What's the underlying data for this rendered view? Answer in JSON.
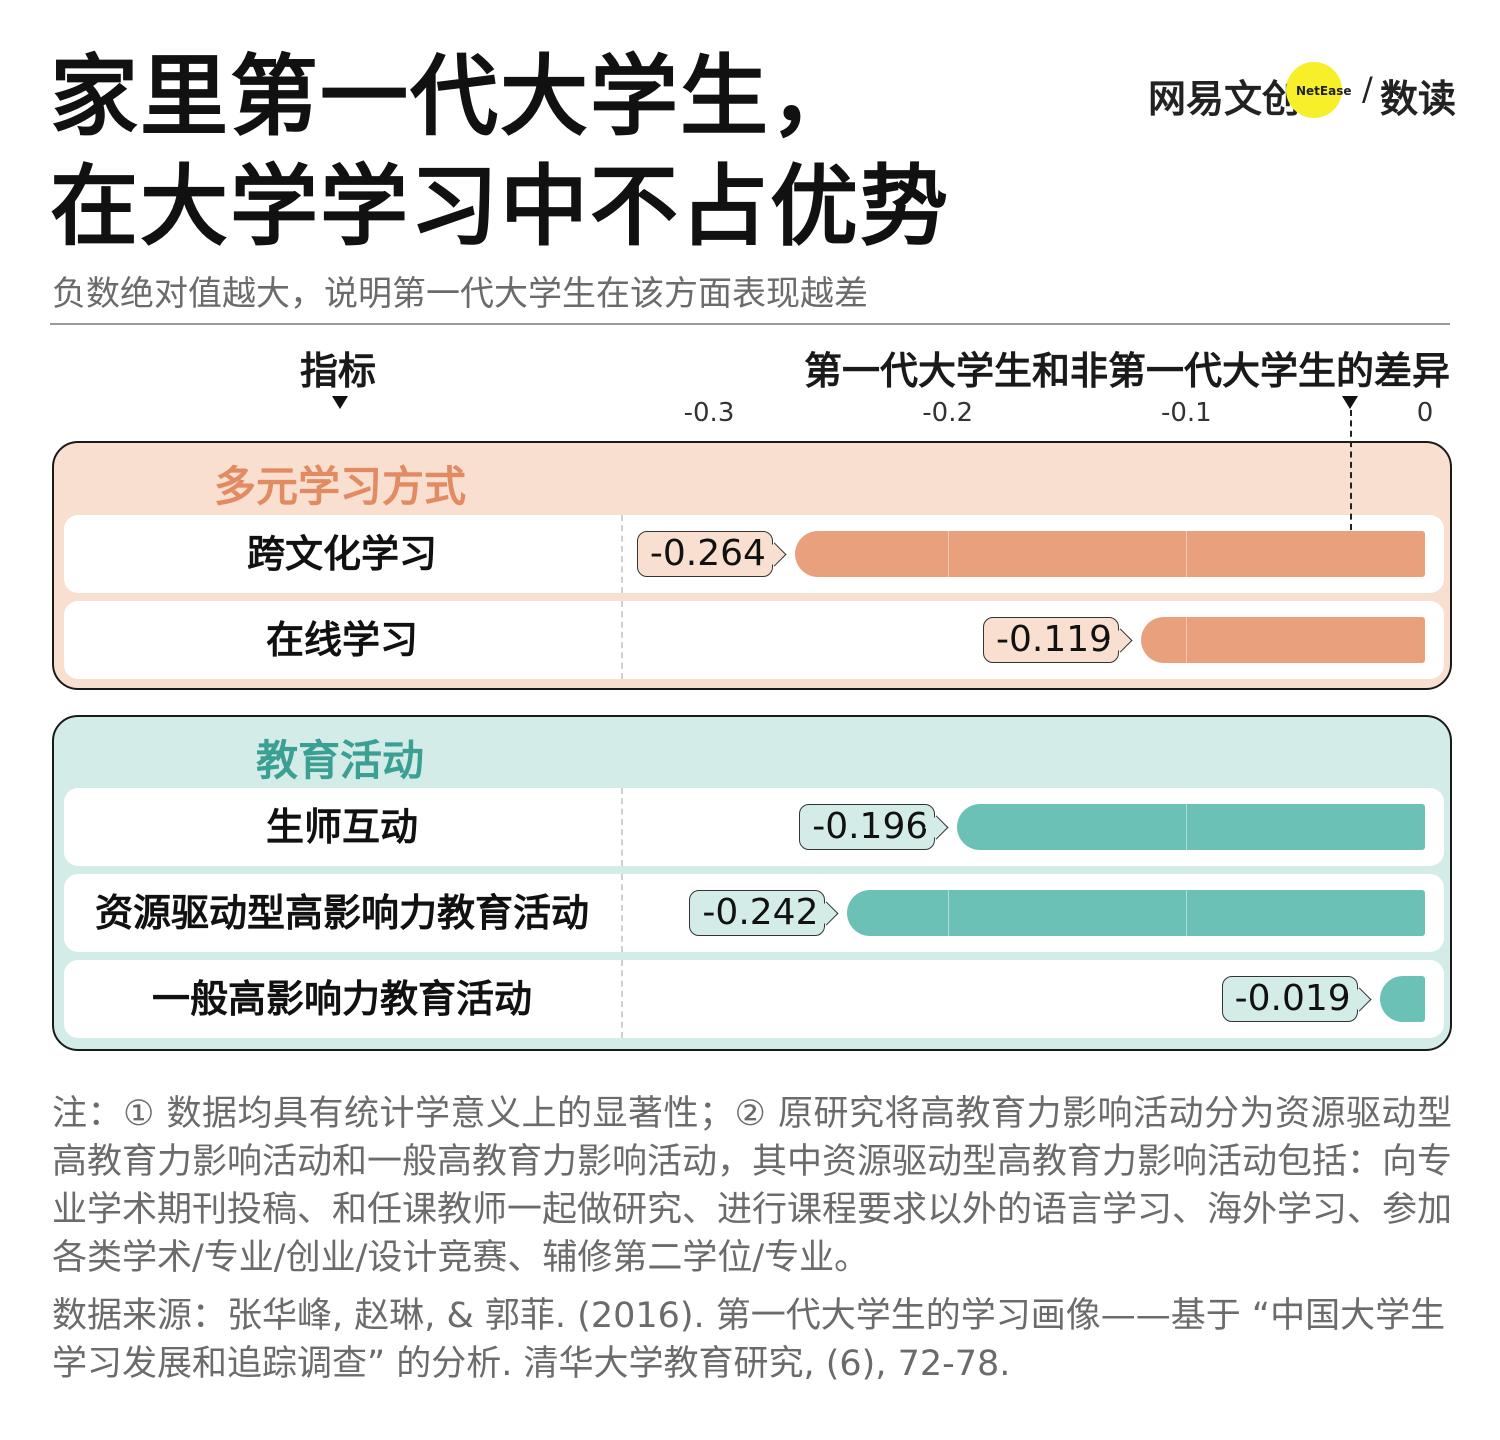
{
  "title_line1": "家里第一代大学生，",
  "title_line2": "在大学学习中不占优势",
  "subtitle": "负数绝对值越大，说明第一代大学生在该方面表现越差",
  "brand": {
    "name_cn": "网易文创",
    "name_en": "NetEase",
    "slash": "/",
    "column": "数读"
  },
  "header": {
    "indicator": "指标",
    "difference": "第一代大学生和非第一代大学生的差异"
  },
  "colors": {
    "orange_panel": "#f8dfcf",
    "orange_bar": "#e9a07c",
    "orange_label_bg": "#f8dfcf",
    "orange_title": "#e28a62",
    "teal_panel": "#d4ece8",
    "teal_bar": "#6cc1b6",
    "teal_label_bg": "#d4ece8",
    "teal_title": "#3c9f93"
  },
  "chart_data": {
    "type": "bar",
    "orientation": "horizontal",
    "xlim": [
      -0.3,
      0
    ],
    "xticks": [
      "-0.3",
      "-0.2",
      "-0.1",
      "0"
    ],
    "groups": [
      {
        "name": "多元学习方式",
        "categories": [
          "跨文化学习",
          "在线学习"
        ],
        "values": [
          -0.264,
          -0.119
        ],
        "labels": [
          "-0.264",
          "-0.119"
        ]
      },
      {
        "name": "教育活动",
        "categories": [
          "生师互动",
          "资源驱动型高影响力教育活动",
          "一般高影响力教育活动"
        ],
        "values": [
          -0.196,
          -0.242,
          -0.019
        ],
        "labels": [
          "-0.196",
          "-0.242",
          "-0.019"
        ]
      }
    ]
  },
  "note": "注：① 数据均具有统计学意义上的显著性；② 原研究将高教育力影响活动分为资源驱动型高教育力影响活动和一般高教育力影响活动，其中资源驱动型高教育力影响活动包括：向专业学术期刊投稿、和任课教师一起做研究、进行课程要求以外的语言学习、海外学习、参加各类学术/专业/创业/设计竞赛、辅修第二学位/专业。",
  "source": "数据来源：张华峰, 赵琳, & 郭菲. (2016). 第一代大学生的学习画像——基于 “中国大学生学习发展和追踪调查” 的分析. 清华大学教育研究, (6), 72-78."
}
